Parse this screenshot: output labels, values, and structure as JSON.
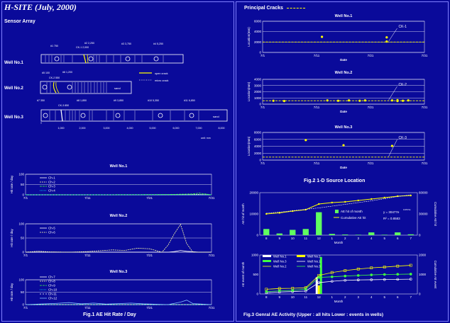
{
  "header": {
    "title": "H-SITE  (July, 2000)",
    "sensor_array": "Sensor Array"
  },
  "captions": {
    "fig1": "Fig.1  AE Hit Rate / Day",
    "fig2": "Fig.2 1-D Source Location",
    "fig3": "Fig.3 Genral AE Activity (Upper : all hits  Lower : events in wells)"
  },
  "principal_cracks": "Principal Cracks",
  "sensor_array": {
    "wells": [
      "Well No.1",
      "Well No.2",
      "Well No.3"
    ],
    "sand_label": "sand",
    "legend": [
      "open crack",
      "micro crack"
    ],
    "w1_labels": [
      "#1 750",
      "#2 2,250",
      "#3 3,750",
      "#4 5,250",
      "CK-1 2,000"
    ],
    "w2_labels": [
      "#5 100",
      "#6 1,200",
      "CK-2 550"
    ],
    "w3_labels": [
      "#7 350",
      "CK-3 850",
      "#8 1,850",
      "#9 3,850",
      "#10 5,350",
      "#11 6,850"
    ],
    "w3_ticks": [
      "1,000",
      "2,000",
      "3,000",
      "4,000",
      "5,000",
      "6,000",
      "7,000",
      "8,000"
    ],
    "unit": "unit: mm"
  },
  "chart_data": [
    {
      "type": "line",
      "title": "Well No.1",
      "ylabel": "Hit rate / day",
      "xlabel": "",
      "x_ticks": [
        "7/1",
        "7/11",
        "7/21",
        "7/31"
      ],
      "ylim": [
        0,
        100
      ],
      "y_ticks": [
        0,
        50,
        100
      ],
      "series": [
        {
          "name": "Ch-1",
          "color": "#ffffff",
          "dash": "",
          "x": [
            1,
            5,
            10,
            15,
            20,
            25,
            29,
            31
          ],
          "y": [
            0,
            0,
            0,
            0,
            0,
            0,
            0,
            0
          ]
        },
        {
          "name": "Ch-2",
          "color": "#ffffaa",
          "dash": "2,1",
          "x": [
            1,
            10,
            20,
            25,
            29,
            31
          ],
          "y": [
            0,
            0,
            0,
            0,
            2,
            0
          ]
        },
        {
          "name": "Ch-3",
          "color": "#40ff40",
          "dash": "3,1",
          "x": [
            1,
            10,
            20,
            25,
            28,
            29,
            31
          ],
          "y": [
            0,
            0,
            1,
            2,
            4,
            8,
            0
          ]
        },
        {
          "name": "Ch-4",
          "color": "#00ffff",
          "dash": "1,1",
          "x": [
            1,
            10,
            20,
            31
          ],
          "y": [
            0,
            0,
            0,
            0
          ]
        }
      ]
    },
    {
      "type": "line",
      "title": "Well No.2",
      "ylabel": "Hit rate / day",
      "xlabel": "",
      "x_ticks": [
        "7/1",
        "7/11",
        "7/21",
        "7/31"
      ],
      "ylim": [
        0,
        100
      ],
      "y_ticks": [
        0,
        50,
        100
      ],
      "series": [
        {
          "name": "Ch-5",
          "color": "#ffffff",
          "dash": "",
          "x": [
            1,
            10,
            20,
            24,
            25,
            26,
            27,
            29,
            31
          ],
          "y": [
            0,
            0,
            0,
            0,
            2,
            6,
            3,
            0,
            0
          ]
        },
        {
          "name": "Ch-6",
          "color": "#ffffaa",
          "dash": "2,1",
          "x": [
            1,
            3,
            5,
            8,
            11,
            13,
            15,
            17,
            19,
            21,
            23,
            24,
            25,
            26,
            27,
            28,
            31
          ],
          "y": [
            0,
            3,
            1,
            0,
            2,
            5,
            8,
            6,
            14,
            12,
            0,
            25,
            65,
            98,
            30,
            0,
            0
          ]
        }
      ]
    },
    {
      "type": "line",
      "title": "Well No.3",
      "ylabel": "Hit rate / day",
      "xlabel": "",
      "x_ticks": [
        "7/1",
        "7/11",
        "7/21",
        "7/31"
      ],
      "ylim": [
        0,
        100
      ],
      "y_ticks": [
        0,
        50,
        100
      ],
      "series": [
        {
          "name": "Ch-7",
          "color": "#ffffff",
          "dash": "",
          "x": [
            1,
            10,
            20,
            31
          ],
          "y": [
            0,
            0,
            0,
            0
          ]
        },
        {
          "name": "Ch-8",
          "color": "#ffffaa",
          "dash": "2,1",
          "x": [
            1,
            10,
            20,
            31
          ],
          "y": [
            0,
            0,
            0,
            0
          ]
        },
        {
          "name": "Ch-9",
          "color": "#40ff40",
          "dash": "3,1",
          "x": [
            1,
            10,
            20,
            31
          ],
          "y": [
            0,
            0,
            0,
            0
          ]
        },
        {
          "name": "Ch-10",
          "color": "#00ffff",
          "dash": "1,1",
          "x": [
            1,
            10,
            20,
            31
          ],
          "y": [
            0,
            0,
            0,
            0
          ]
        },
        {
          "name": "Ch-11",
          "color": "#ffffff",
          "dash": "2,2",
          "x": [
            1,
            10,
            20,
            31
          ],
          "y": [
            0,
            0,
            0,
            0
          ]
        },
        {
          "name": "Ch-12",
          "color": "#80c0ff",
          "dash": "",
          "x": [
            1,
            6,
            8,
            10,
            12,
            14,
            16,
            18,
            20,
            24,
            26,
            27,
            28,
            31
          ],
          "y": [
            0,
            5,
            8,
            3,
            6,
            2,
            4,
            6,
            3,
            0,
            10,
            18,
            4,
            0
          ]
        }
      ]
    },
    {
      "type": "scatter",
      "title": "Well No.1",
      "ylabel": "Location(mm)",
      "xlabel": "Date",
      "x_ticks": [
        "7/1",
        "7/11",
        "7/21",
        "7/31"
      ],
      "ylim": [
        0,
        6000
      ],
      "y_ticks": [
        0,
        2000,
        4000,
        6000
      ],
      "crack": {
        "label": "CK-1",
        "value": 2000
      },
      "points": [
        [
          12,
          3000
        ],
        [
          24,
          2900
        ],
        [
          24,
          2100
        ]
      ]
    },
    {
      "type": "scatter",
      "title": "Well No.2",
      "ylabel": "Location(mm)",
      "xlabel": "Date",
      "x_ticks": [
        "7/1",
        "7/11",
        "7/21",
        "7/31"
      ],
      "ylim": [
        0,
        4000
      ],
      "y_ticks": [
        0,
        1000,
        2000,
        3000,
        4000
      ],
      "crack": {
        "label": "CK-2",
        "value": 550
      },
      "points": [
        [
          3,
          550
        ],
        [
          5,
          500
        ],
        [
          13,
          600
        ],
        [
          15,
          550
        ],
        [
          17,
          600
        ],
        [
          19,
          550
        ],
        [
          20,
          600
        ],
        [
          25,
          600
        ],
        [
          26,
          500
        ],
        [
          26,
          650
        ],
        [
          27,
          550
        ],
        [
          28,
          600
        ]
      ]
    },
    {
      "type": "scatter",
      "title": "Well No.3",
      "ylabel": "Location(mm)",
      "xlabel": "Date",
      "x_ticks": [
        "7/1",
        "7/11",
        "7/21",
        "7/31"
      ],
      "ylim": [
        0,
        8000
      ],
      "y_ticks": [
        0,
        2000,
        4000,
        6000,
        8000
      ],
      "crack": {
        "label": "CK-3",
        "value": 850
      },
      "points": [
        [
          9,
          5800
        ],
        [
          16,
          4300
        ],
        [
          25,
          4100
        ]
      ]
    },
    {
      "type": "bar+line",
      "title": "",
      "xlabel": "Month",
      "ylabel": "AE hit of month",
      "y2label": "Cumulative AE hit",
      "categories": [
        "8",
        "9",
        "10",
        "11",
        "12",
        "1",
        "2",
        "3",
        "4",
        "5",
        "6",
        "7"
      ],
      "ylim": [
        0,
        20000
      ],
      "y_ticks": [
        0,
        10000,
        20000
      ],
      "y2lim": [
        0,
        60000
      ],
      "y2_ticks": [
        0,
        30000,
        60000
      ],
      "bars": {
        "name": "AE hit of month",
        "values": [
          2900,
          800,
          2500,
          2900,
          10800,
          600,
          300,
          200,
          1300,
          200,
          1300,
          400
        ]
      },
      "cumulative": {
        "name": "Cumulative AE hit",
        "values": [
          30000,
          31500,
          34000,
          36000,
          44000,
          46000,
          47000,
          49000,
          51000,
          53000,
          55000,
          56000
        ]
      },
      "fit": {
        "formula": "y = 30477e",
        "exponent": "0.0574x",
        "r2": "R² = 0.8583",
        "values": [
          31000,
          32500,
          34500,
          36500,
          38500,
          41000,
          43500,
          46000,
          48500,
          51500,
          54500,
          57000
        ]
      }
    },
    {
      "type": "bar+line",
      "title": "",
      "xlabel": "Month",
      "ylabel": "AE event of month",
      "y2label": "Cumulative AE event",
      "categories": [
        "8",
        "9",
        "10",
        "11",
        "12",
        "1",
        "2",
        "3",
        "4",
        "5",
        "6",
        "7"
      ],
      "ylim": [
        0,
        1000
      ],
      "y_ticks": [
        0,
        500,
        1000
      ],
      "y2lim": [
        0,
        2000
      ],
      "y2_ticks": [
        0,
        1000,
        2000
      ],
      "legend": [
        "Well No.1",
        "Well No.2",
        "Well No.3",
        "Well No.1",
        "Well No.2",
        "Well No.3"
      ],
      "bars": [
        {
          "name": "Well No.1",
          "color": "#ffffff",
          "values": [
            0,
            0,
            0,
            0,
            430,
            0,
            0,
            0,
            0,
            0,
            0,
            0
          ]
        },
        {
          "name": "Well No.2",
          "color": "#ffff00",
          "values": [
            0,
            0,
            0,
            0,
            220,
            0,
            0,
            0,
            0,
            0,
            0,
            0
          ]
        },
        {
          "name": "Well No.3",
          "color": "#40ff40",
          "values": [
            0,
            0,
            0,
            0,
            950,
            0,
            0,
            0,
            0,
            0,
            0,
            0
          ]
        }
      ],
      "lines": [
        {
          "name": "Well No.1",
          "color": "#ffffff",
          "values": [
            60,
            100,
            120,
            150,
            580,
            650,
            700,
            720,
            730,
            740,
            750,
            760
          ]
        },
        {
          "name": "Well No.2",
          "color": "#ffff00",
          "values": [
            240,
            280,
            290,
            320,
            950,
            1100,
            1200,
            1280,
            1340,
            1380,
            1430,
            1470
          ]
        },
        {
          "name": "Well No.3",
          "color": "#40ff40",
          "values": [
            120,
            160,
            180,
            250,
            850,
            880,
            920,
            950,
            980,
            1000,
            1010,
            1020
          ]
        }
      ]
    }
  ]
}
